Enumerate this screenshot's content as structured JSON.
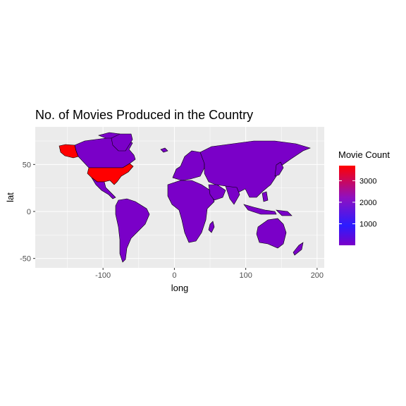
{
  "title": "No. of Movies Produced in the Country",
  "axes": {
    "x_label": "long",
    "y_label": "lat",
    "x_ticks": [
      -100,
      0,
      100,
      200
    ],
    "y_ticks": [
      -50,
      0,
      50
    ],
    "x_range": [
      -195,
      210
    ],
    "y_range": [
      -60,
      90
    ]
  },
  "legend": {
    "title": "Movie Count",
    "labels": [
      1000,
      2000,
      3000
    ],
    "range": [
      1,
      3700
    ],
    "colors": {
      "low": "#7a00c8",
      "mid": "#2c1cff",
      "high": "#ff0000"
    },
    "placement": "right"
  },
  "chart_data": {
    "type": "map",
    "title": "No. of Movies Produced in the Country",
    "xlabel": "long",
    "ylabel": "lat",
    "fill_variable": "Movie Count",
    "highlighted": [
      {
        "region": "USA",
        "count": 3700,
        "color": "#ff0000"
      }
    ],
    "other_regions_color": "#7a00c8",
    "xlim": [
      -195,
      210
    ],
    "ylim": [
      -60,
      90
    ]
  }
}
